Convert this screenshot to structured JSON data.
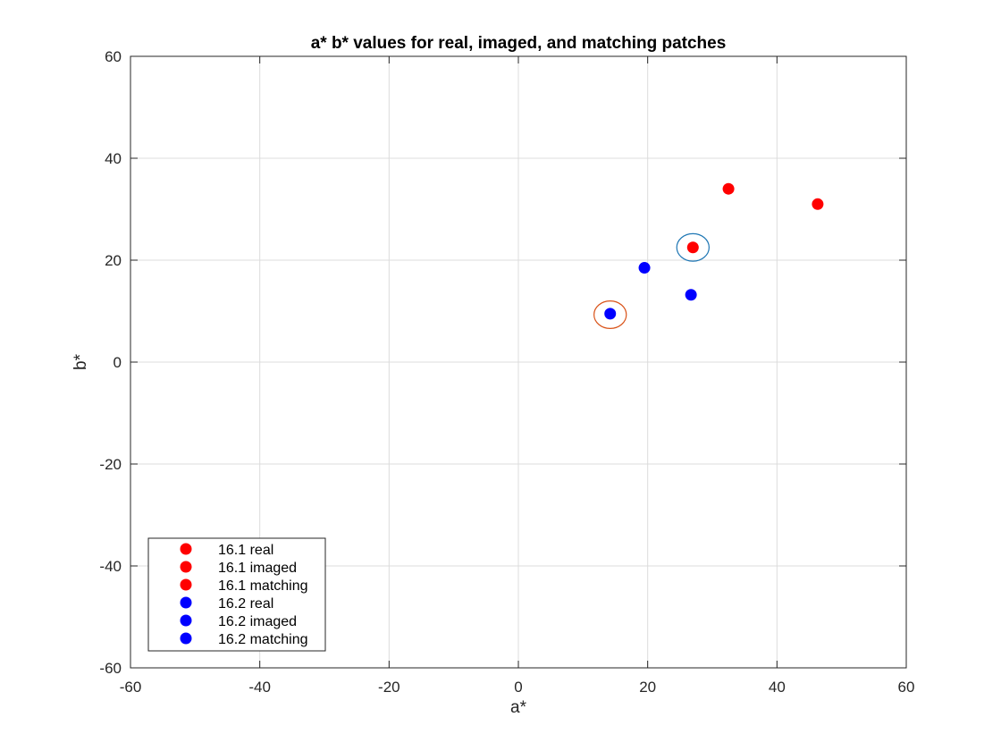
{
  "chart_data": {
    "type": "scatter",
    "title": "a* b* values for real, imaged, and matching patches",
    "xlabel": "a*",
    "ylabel": "b*",
    "xlim": [
      -60,
      60
    ],
    "ylim": [
      -60,
      60
    ],
    "xticks": [
      -60,
      -40,
      -20,
      0,
      20,
      40,
      60
    ],
    "yticks": [
      -60,
      -40,
      -20,
      0,
      20,
      40,
      60
    ],
    "grid": true,
    "legend_position": "bottom-left",
    "series": [
      {
        "name": "16.1 real",
        "color": "#ff0000",
        "points": [
          [
            32.5,
            34
          ]
        ]
      },
      {
        "name": "16.1 imaged",
        "color": "#ff0000",
        "points": [
          [
            46.3,
            31
          ]
        ]
      },
      {
        "name": "16.1 matching",
        "color": "#ff0000",
        "points": [
          [
            27,
            22.5
          ]
        ]
      },
      {
        "name": "16.2 real",
        "color": "#0000ff",
        "points": [
          [
            19.5,
            18.5
          ]
        ]
      },
      {
        "name": "16.2 imaged",
        "color": "#0000ff",
        "points": [
          [
            26.7,
            13.2
          ]
        ]
      },
      {
        "name": "16.2 matching",
        "color": "#0000ff",
        "points": [
          [
            14.2,
            9.5
          ]
        ]
      }
    ],
    "ellipses": [
      {
        "center": [
          27,
          22.5
        ],
        "rx": 2.5,
        "ry": 2.7,
        "color": "#1f77b4"
      },
      {
        "center": [
          14.2,
          9.3
        ],
        "rx": 2.5,
        "ry": 2.7,
        "color": "#d95319"
      }
    ]
  }
}
